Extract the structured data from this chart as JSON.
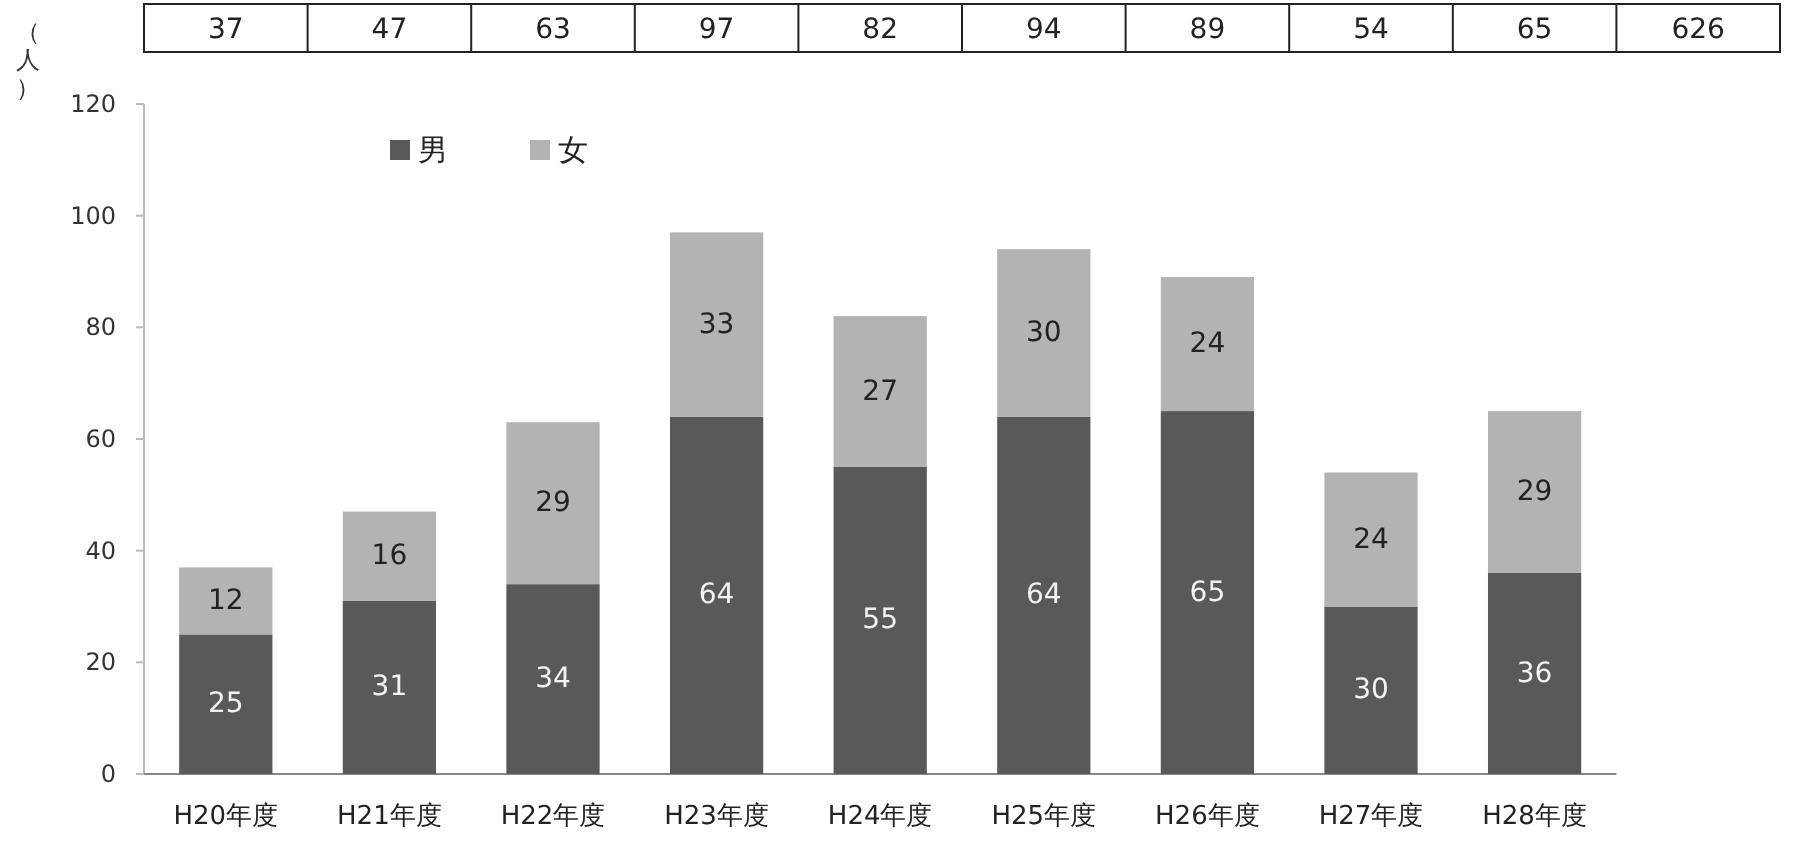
{
  "chart_data": {
    "type": "bar",
    "stacked": true,
    "ylabel": "（人）",
    "categories": [
      "H20年度",
      "H21年度",
      "H22年度",
      "H23年度",
      "H24年度",
      "H25年度",
      "H26年度",
      "H27年度",
      "H28年度"
    ],
    "series": [
      {
        "name": "男",
        "color": "#595959",
        "values": [
          25,
          31,
          34,
          64,
          55,
          64,
          65,
          30,
          36
        ]
      },
      {
        "name": "女",
        "color": "#b3b3b3",
        "values": [
          12,
          16,
          29,
          33,
          27,
          30,
          24,
          24,
          29
        ]
      }
    ],
    "ylim": [
      0,
      120
    ],
    "yticks": [
      0,
      20,
      40,
      60,
      80,
      100,
      120
    ],
    "data_labels": true,
    "legend": "top left",
    "annotations": [
      "37",
      "47",
      "63",
      "97",
      "82",
      "94",
      "89",
      "54",
      "65",
      "626"
    ]
  }
}
